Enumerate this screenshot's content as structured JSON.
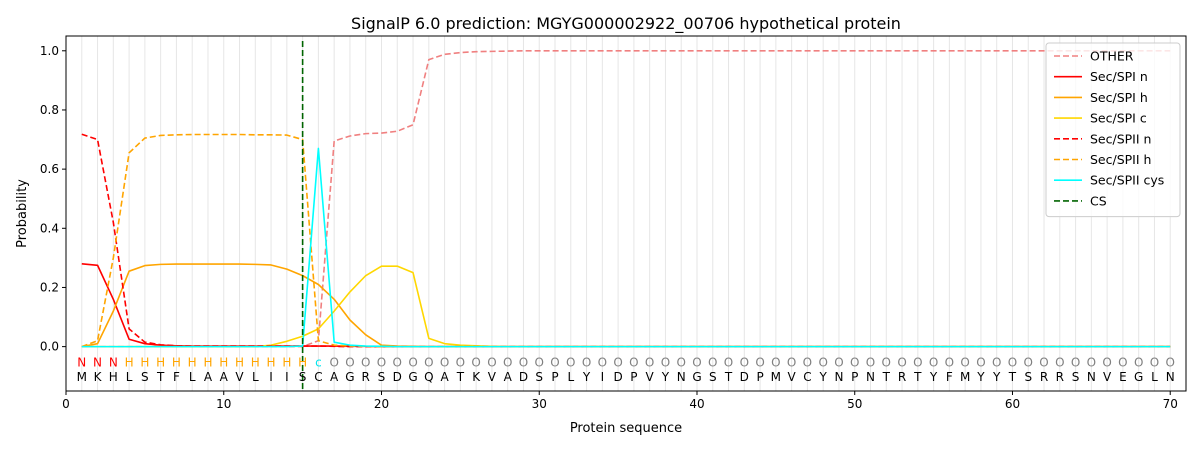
{
  "chart_data": {
    "type": "line",
    "title": "SignalP 6.0 prediction: MGYG000002922_00706 hypothetical protein",
    "xlabel": "Protein sequence",
    "ylabel": "Probability",
    "xlim": [
      0,
      71
    ],
    "ylim": [
      -0.15,
      1.05
    ],
    "xticks": [
      0,
      10,
      20,
      30,
      40,
      50,
      60,
      70
    ],
    "yticks": [
      0.0,
      0.2,
      0.4,
      0.6,
      0.8,
      1.0
    ],
    "xtick_labels": [
      "0",
      "10",
      "20",
      "30",
      "40",
      "50",
      "60",
      "70"
    ],
    "ytick_labels": [
      "0.0",
      "0.2",
      "0.4",
      "0.6",
      "0.8",
      "1.0"
    ],
    "grid": "vertical lines at each residue",
    "legend_position": "top-right",
    "sequence": [
      "M",
      "K",
      "H",
      "L",
      "S",
      "T",
      "F",
      "L",
      "A",
      "A",
      "V",
      "L",
      "I",
      "I",
      "S",
      "C",
      "A",
      "G",
      "R",
      "S",
      "D",
      "G",
      "Q",
      "A",
      "T",
      "K",
      "V",
      "A",
      "D",
      "S",
      "P",
      "L",
      "Y",
      "I",
      "D",
      "P",
      "V",
      "Y",
      "N",
      "G",
      "S",
      "T",
      "D",
      "P",
      "M",
      "V",
      "C",
      "Y",
      "N",
      "P",
      "N",
      "T",
      "R",
      "T",
      "Y",
      "F",
      "M",
      "Y",
      "Y",
      "T",
      "S",
      "R",
      "R",
      "S",
      "N",
      "V",
      "E",
      "G",
      "L",
      "N"
    ],
    "region_labels": [
      "N",
      "N",
      "N",
      "H",
      "H",
      "H",
      "H",
      "H",
      "H",
      "H",
      "H",
      "H",
      "H",
      "H",
      "H",
      "c",
      "O",
      "O",
      "O",
      "O",
      "O",
      "O",
      "O",
      "O",
      "O",
      "O",
      "O",
      "O",
      "O",
      "O",
      "O",
      "O",
      "O",
      "O",
      "O",
      "O",
      "O",
      "O",
      "O",
      "O",
      "O",
      "O",
      "O",
      "O",
      "O",
      "O",
      "O",
      "O",
      "O",
      "O",
      "O",
      "O",
      "O",
      "O",
      "O",
      "O",
      "O",
      "O",
      "O",
      "O",
      "O",
      "O",
      "O",
      "O",
      "O",
      "O",
      "O",
      "O",
      "O",
      "O"
    ],
    "region_colors": {
      "N": "#ff0000",
      "H": "#ffa500",
      "c": "#00e5ee",
      "O": "#808080"
    },
    "cleavage_site": 15,
    "series": [
      {
        "name": "OTHER",
        "color": "#f08080",
        "dash": true,
        "values": [
          0.0,
          0.0,
          0.0,
          0.0,
          0.0,
          0.0,
          0.0,
          0.0,
          0.0,
          0.0,
          0.0,
          0.0,
          0.0,
          0.0,
          0.0,
          0.02,
          0.695,
          0.712,
          0.72,
          0.722,
          0.728,
          0.75,
          0.97,
          0.988,
          0.994,
          0.997,
          0.998,
          0.999,
          1.0,
          1.0,
          1.0,
          1.0,
          1.0,
          1.0,
          1.0,
          1.0,
          1.0,
          1.0,
          1.0,
          1.0,
          1.0,
          1.0,
          1.0,
          1.0,
          1.0,
          1.0,
          1.0,
          1.0,
          1.0,
          1.0,
          1.0,
          1.0,
          1.0,
          1.0,
          1.0,
          1.0,
          1.0,
          1.0,
          1.0,
          1.0,
          1.0,
          1.0,
          1.0,
          1.0,
          1.0,
          1.0,
          1.0,
          1.0,
          1.0,
          1.0
        ]
      },
      {
        "name": "Sec/SPI n",
        "color": "#ff0000",
        "dash": false,
        "values": [
          0.28,
          0.275,
          0.16,
          0.025,
          0.01,
          0.005,
          0.003,
          0.002,
          0.002,
          0.002,
          0.002,
          0.002,
          0.002,
          0.002,
          0.002,
          0.002,
          0.002,
          0.001,
          0.001,
          0.0,
          0.0,
          0.0,
          0.0,
          0.0,
          0.0,
          0.0,
          0.0,
          0.0,
          0.0,
          0.0,
          0.0,
          0.0,
          0.0,
          0.0,
          0.0,
          0.0,
          0.0,
          0.0,
          0.0,
          0.0,
          0.0,
          0.0,
          0.0,
          0.0,
          0.0,
          0.0,
          0.0,
          0.0,
          0.0,
          0.0,
          0.0,
          0.0,
          0.0,
          0.0,
          0.0,
          0.0,
          0.0,
          0.0,
          0.0,
          0.0,
          0.0,
          0.0,
          0.0,
          0.0,
          0.0,
          0.0,
          0.0,
          0.0,
          0.0,
          0.0
        ]
      },
      {
        "name": "Sec/SPI h",
        "color": "#ffa500",
        "dash": false,
        "values": [
          0.0,
          0.01,
          0.12,
          0.255,
          0.274,
          0.278,
          0.279,
          0.279,
          0.279,
          0.279,
          0.279,
          0.278,
          0.276,
          0.262,
          0.24,
          0.21,
          0.16,
          0.09,
          0.04,
          0.005,
          0.002,
          0.001,
          0.0,
          0.0,
          0.0,
          0.0,
          0.0,
          0.0,
          0.0,
          0.0,
          0.0,
          0.0,
          0.0,
          0.0,
          0.0,
          0.0,
          0.0,
          0.0,
          0.0,
          0.0,
          0.0,
          0.0,
          0.0,
          0.0,
          0.0,
          0.0,
          0.0,
          0.0,
          0.0,
          0.0,
          0.0,
          0.0,
          0.0,
          0.0,
          0.0,
          0.0,
          0.0,
          0.0,
          0.0,
          0.0,
          0.0,
          0.0,
          0.0,
          0.0,
          0.0,
          0.0,
          0.0,
          0.0,
          0.0,
          0.0
        ]
      },
      {
        "name": "Sec/SPI c",
        "color": "#ffd700",
        "dash": false,
        "values": [
          0.0,
          0.0,
          0.0,
          0.0,
          0.0,
          0.0,
          0.0,
          0.0,
          0.0,
          0.0,
          0.0,
          0.0,
          0.005,
          0.018,
          0.035,
          0.06,
          0.12,
          0.185,
          0.24,
          0.272,
          0.272,
          0.25,
          0.028,
          0.01,
          0.005,
          0.003,
          0.001,
          0.0,
          0.0,
          0.0,
          0.0,
          0.0,
          0.0,
          0.0,
          0.0,
          0.0,
          0.0,
          0.0,
          0.0,
          0.0,
          0.0,
          0.0,
          0.0,
          0.0,
          0.0,
          0.0,
          0.0,
          0.0,
          0.0,
          0.0,
          0.0,
          0.0,
          0.0,
          0.0,
          0.0,
          0.0,
          0.0,
          0.0,
          0.0,
          0.0,
          0.0,
          0.0,
          0.0,
          0.0,
          0.0,
          0.0,
          0.0,
          0.0,
          0.0,
          0.0
        ]
      },
      {
        "name": "Sec/SPII n",
        "color": "#ff0000",
        "dash": true,
        "values": [
          0.718,
          0.7,
          0.42,
          0.06,
          0.015,
          0.006,
          0.003,
          0.002,
          0.002,
          0.002,
          0.002,
          0.002,
          0.002,
          0.002,
          0.002,
          0.002,
          0.001,
          0.0,
          0.0,
          0.0,
          0.0,
          0.0,
          0.0,
          0.0,
          0.0,
          0.0,
          0.0,
          0.0,
          0.0,
          0.0,
          0.0,
          0.0,
          0.0,
          0.0,
          0.0,
          0.0,
          0.0,
          0.0,
          0.0,
          0.0,
          0.0,
          0.0,
          0.0,
          0.0,
          0.0,
          0.0,
          0.0,
          0.0,
          0.0,
          0.0,
          0.0,
          0.0,
          0.0,
          0.0,
          0.0,
          0.0,
          0.0,
          0.0,
          0.0,
          0.0,
          0.0,
          0.0,
          0.0,
          0.0,
          0.0,
          0.0,
          0.0,
          0.0,
          0.0,
          0.0
        ]
      },
      {
        "name": "Sec/SPII h",
        "color": "#ffa500",
        "dash": true,
        "values": [
          0.0,
          0.02,
          0.3,
          0.655,
          0.705,
          0.714,
          0.716,
          0.717,
          0.717,
          0.717,
          0.717,
          0.716,
          0.716,
          0.715,
          0.7,
          0.02,
          0.005,
          0.002,
          0.001,
          0.0,
          0.0,
          0.0,
          0.0,
          0.0,
          0.0,
          0.0,
          0.0,
          0.0,
          0.0,
          0.0,
          0.0,
          0.0,
          0.0,
          0.0,
          0.0,
          0.0,
          0.0,
          0.0,
          0.0,
          0.0,
          0.0,
          0.0,
          0.0,
          0.0,
          0.0,
          0.0,
          0.0,
          0.0,
          0.0,
          0.0,
          0.0,
          0.0,
          0.0,
          0.0,
          0.0,
          0.0,
          0.0,
          0.0,
          0.0,
          0.0,
          0.0,
          0.0,
          0.0,
          0.0,
          0.0,
          0.0,
          0.0,
          0.0,
          0.0,
          0.0
        ]
      },
      {
        "name": "Sec/SPII cys",
        "color": "#00ffff",
        "dash": false,
        "values": [
          0.0,
          0.0,
          0.0,
          0.0,
          0.0,
          0.0,
          0.0,
          0.0,
          0.0,
          0.0,
          0.0,
          0.0,
          0.0,
          0.0,
          0.002,
          0.67,
          0.015,
          0.005,
          0.002,
          0.001,
          0.0,
          0.0,
          0.0,
          0.0,
          0.0,
          0.0,
          0.0,
          0.0,
          0.0,
          0.0,
          0.0,
          0.0,
          0.0,
          0.0,
          0.0,
          0.0,
          0.0,
          0.0,
          0.0,
          0.0,
          0.0,
          0.0,
          0.0,
          0.0,
          0.0,
          0.0,
          0.0,
          0.0,
          0.0,
          0.0,
          0.0,
          0.0,
          0.0,
          0.0,
          0.0,
          0.0,
          0.0,
          0.0,
          0.0,
          0.0,
          0.0,
          0.0,
          0.0,
          0.0,
          0.0,
          0.0,
          0.0,
          0.0,
          0.0,
          0.0
        ]
      }
    ],
    "cs_line": {
      "name": "CS",
      "color": "#006400",
      "x": 15
    }
  }
}
